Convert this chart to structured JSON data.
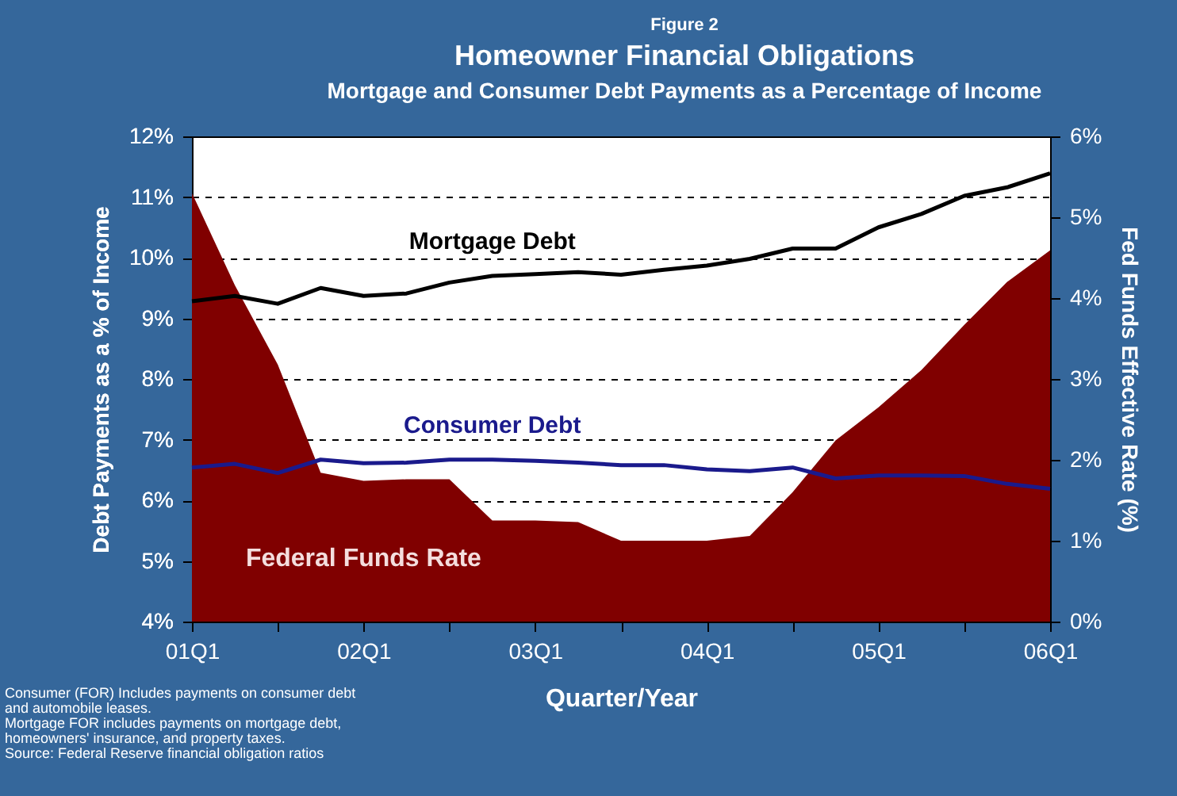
{
  "chart_data": {
    "type": "line",
    "title": "Homeowner Financial Obligations",
    "subtitle": "Mortgage and Consumer Debt Payments as a Percentage of Income",
    "xlabel": "Quarter/Year",
    "ylabel": "Debt Payments as a % of Income",
    "y2label": "Fed Funds Effective Rate (%)",
    "categories": [
      "01Q1",
      null,
      null,
      null,
      "02Q1",
      null,
      null,
      null,
      "03Q1",
      null,
      null,
      null,
      "04Q1",
      null,
      null,
      null,
      "05Q1",
      null,
      null,
      null,
      "06Q1"
    ],
    "series": [
      {
        "name": "Federal Funds Rate",
        "type": "area",
        "axis": "y2",
        "color": "#800000",
        "values": [
          5.3,
          4.16,
          3.18,
          1.84,
          1.74,
          1.76,
          1.76,
          1.25,
          1.25,
          1.23,
          1.0,
          1.0,
          1.0,
          1.06,
          1.6,
          2.24,
          2.65,
          3.11,
          3.67,
          4.2,
          4.59
        ]
      },
      {
        "name": "Mortgage Debt",
        "type": "line",
        "color": "#000000",
        "values": [
          9.28,
          9.37,
          9.24,
          9.5,
          9.37,
          9.41,
          9.59,
          9.7,
          9.73,
          9.76,
          9.72,
          9.8,
          9.87,
          9.98,
          10.15,
          10.15,
          10.5,
          10.72,
          11.02,
          11.16,
          11.39
        ]
      },
      {
        "name": "Consumer Debt",
        "type": "line",
        "color": "#1a1a8c",
        "values": [
          6.54,
          6.6,
          6.45,
          6.67,
          6.61,
          6.62,
          6.67,
          6.67,
          6.65,
          6.62,
          6.58,
          6.58,
          6.51,
          6.48,
          6.54,
          6.36,
          6.41,
          6.41,
          6.4,
          6.27,
          6.19
        ]
      }
    ],
    "ylim": [
      4,
      12
    ],
    "yticks": [
      {
        "value": 4,
        "label": "4%"
      },
      {
        "value": 5,
        "label": "5%"
      },
      {
        "value": 6,
        "label": "6%"
      },
      {
        "value": 7,
        "label": "7%"
      },
      {
        "value": 8,
        "label": "8%"
      },
      {
        "value": 9,
        "label": "9%"
      },
      {
        "value": 10,
        "label": "10%"
      },
      {
        "value": 11,
        "label": "11%"
      },
      {
        "value": 12,
        "label": "12%"
      }
    ],
    "y2lim": [
      0,
      6
    ],
    "y2ticks": [
      {
        "value": 0,
        "label": "0%"
      },
      {
        "value": 1,
        "label": "1%"
      },
      {
        "value": 2,
        "label": "2%"
      },
      {
        "value": 3,
        "label": "3%"
      },
      {
        "value": 4,
        "label": "4%"
      },
      {
        "value": 5,
        "label": "5%"
      },
      {
        "value": 6,
        "label": "6%"
      }
    ],
    "grid": "y",
    "legend": false,
    "annotations": [
      "Figure 2",
      "Consumer (FOR) Includes payments on consumer debt",
      "and automobile leases.",
      "Mortgage FOR includes payments on mortgage debt,",
      "homeowners' insurance, and property taxes.",
      "Source: Federal Reserve financial obligation ratios"
    ]
  }
}
